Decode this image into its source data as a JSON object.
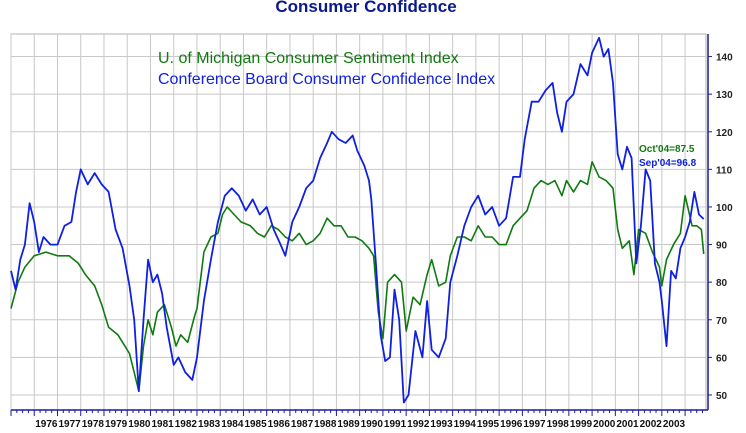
{
  "chart_data": {
    "type": "line",
    "title": "Consumer Confidence",
    "xlabel": "",
    "ylabel": "",
    "ylim": [
      46,
      146
    ],
    "yticks": [
      50,
      60,
      70,
      80,
      90,
      100,
      110,
      120,
      130,
      140
    ],
    "x_years": [
      "1976",
      "1977",
      "1978",
      "1979",
      "1980",
      "1981",
      "1982",
      "1983",
      "1984",
      "1985",
      "1986",
      "1987",
      "1988",
      "1989",
      "1990",
      "1991",
      "1992",
      "1993",
      "1994",
      "1995",
      "1996",
      "1997",
      "1998",
      "1999",
      "2000",
      "2001",
      "2002",
      "2003"
    ],
    "xlim": [
      1975.0,
      2004.9
    ],
    "grid": true,
    "legend": "top-left",
    "colors": {
      "sentiment": "#107a10",
      "confidence": "#1020e0",
      "axis": "#1a1aa0",
      "grid": "#c8c8c8"
    },
    "series": [
      {
        "name": "U. of Michigan Consumer Sentiment Index",
        "key": "sentiment",
        "points": [
          [
            1975.0,
            73
          ],
          [
            1975.3,
            80
          ],
          [
            1975.6,
            84
          ],
          [
            1976.0,
            87
          ],
          [
            1976.5,
            88
          ],
          [
            1977.0,
            87
          ],
          [
            1977.5,
            87
          ],
          [
            1977.9,
            85
          ],
          [
            1978.2,
            82
          ],
          [
            1978.6,
            79
          ],
          [
            1978.9,
            74
          ],
          [
            1979.2,
            68
          ],
          [
            1979.6,
            66
          ],
          [
            1979.9,
            63
          ],
          [
            1980.1,
            61
          ],
          [
            1980.3,
            56
          ],
          [
            1980.5,
            51
          ],
          [
            1980.7,
            63
          ],
          [
            1980.9,
            70
          ],
          [
            1981.1,
            66
          ],
          [
            1981.3,
            72
          ],
          [
            1981.6,
            74
          ],
          [
            1981.9,
            68
          ],
          [
            1982.1,
            63
          ],
          [
            1982.3,
            66
          ],
          [
            1982.6,
            64
          ],
          [
            1982.9,
            71
          ],
          [
            1983.0,
            73
          ],
          [
            1983.3,
            88
          ],
          [
            1983.6,
            92
          ],
          [
            1983.9,
            93
          ],
          [
            1984.1,
            98
          ],
          [
            1984.3,
            100
          ],
          [
            1984.6,
            98
          ],
          [
            1984.9,
            96
          ],
          [
            1985.3,
            95
          ],
          [
            1985.6,
            93
          ],
          [
            1985.9,
            92
          ],
          [
            1986.2,
            95
          ],
          [
            1986.5,
            94
          ],
          [
            1986.8,
            92
          ],
          [
            1987.1,
            91
          ],
          [
            1987.4,
            93
          ],
          [
            1987.7,
            90
          ],
          [
            1988.0,
            91
          ],
          [
            1988.3,
            93
          ],
          [
            1988.6,
            97
          ],
          [
            1988.9,
            95
          ],
          [
            1989.2,
            95
          ],
          [
            1989.5,
            92
          ],
          [
            1989.8,
            92
          ],
          [
            1990.1,
            91
          ],
          [
            1990.4,
            89
          ],
          [
            1990.6,
            87
          ],
          [
            1990.8,
            72
          ],
          [
            1991.0,
            65
          ],
          [
            1991.2,
            80
          ],
          [
            1991.5,
            82
          ],
          [
            1991.8,
            80
          ],
          [
            1992.0,
            67
          ],
          [
            1992.3,
            76
          ],
          [
            1992.6,
            74
          ],
          [
            1992.9,
            82
          ],
          [
            1993.1,
            86
          ],
          [
            1993.4,
            79
          ],
          [
            1993.7,
            80
          ],
          [
            1993.9,
            87
          ],
          [
            1994.2,
            92
          ],
          [
            1994.5,
            92
          ],
          [
            1994.8,
            91
          ],
          [
            1995.1,
            95
          ],
          [
            1995.4,
            92
          ],
          [
            1995.7,
            92
          ],
          [
            1996.0,
            90
          ],
          [
            1996.3,
            90
          ],
          [
            1996.6,
            95
          ],
          [
            1996.9,
            97
          ],
          [
            1997.2,
            99
          ],
          [
            1997.5,
            105
          ],
          [
            1997.8,
            107
          ],
          [
            1998.1,
            106
          ],
          [
            1998.4,
            107
          ],
          [
            1998.7,
            103
          ],
          [
            1998.9,
            107
          ],
          [
            1999.2,
            104
          ],
          [
            1999.5,
            107
          ],
          [
            1999.8,
            106
          ],
          [
            2000.0,
            112
          ],
          [
            2000.3,
            108
          ],
          [
            2000.6,
            107
          ],
          [
            2000.9,
            105
          ],
          [
            2001.1,
            94
          ],
          [
            2001.3,
            89
          ],
          [
            2001.6,
            91
          ],
          [
            2001.8,
            82
          ],
          [
            2002.0,
            94
          ],
          [
            2002.3,
            93
          ],
          [
            2002.6,
            88
          ],
          [
            2002.9,
            84
          ],
          [
            2003.0,
            79
          ],
          [
            2003.2,
            86
          ],
          [
            2003.5,
            90
          ],
          [
            2003.8,
            93
          ],
          [
            2004.0,
            103
          ],
          [
            2004.3,
            95
          ],
          [
            2004.5,
            95
          ],
          [
            2004.7,
            94
          ],
          [
            2004.8,
            87.5
          ]
        ]
      },
      {
        "name": "Conference Board Consumer Confidence Index",
        "key": "confidence",
        "points": [
          [
            1975.0,
            83
          ],
          [
            1975.2,
            78
          ],
          [
            1975.4,
            86
          ],
          [
            1975.6,
            90
          ],
          [
            1975.8,
            101
          ],
          [
            1976.0,
            96
          ],
          [
            1976.2,
            88
          ],
          [
            1976.4,
            92
          ],
          [
            1976.7,
            90
          ],
          [
            1977.0,
            90
          ],
          [
            1977.3,
            95
          ],
          [
            1977.6,
            96
          ],
          [
            1977.8,
            104
          ],
          [
            1978.0,
            110
          ],
          [
            1978.3,
            106
          ],
          [
            1978.6,
            109
          ],
          [
            1978.9,
            106
          ],
          [
            1979.2,
            104
          ],
          [
            1979.5,
            94
          ],
          [
            1979.8,
            89
          ],
          [
            1980.1,
            79
          ],
          [
            1980.3,
            70
          ],
          [
            1980.5,
            51
          ],
          [
            1980.7,
            70
          ],
          [
            1980.9,
            86
          ],
          [
            1981.1,
            80
          ],
          [
            1981.3,
            82
          ],
          [
            1981.5,
            77
          ],
          [
            1981.7,
            68
          ],
          [
            1982.0,
            58
          ],
          [
            1982.2,
            60
          ],
          [
            1982.5,
            56
          ],
          [
            1982.8,
            54
          ],
          [
            1983.0,
            60
          ],
          [
            1983.3,
            75
          ],
          [
            1983.6,
            86
          ],
          [
            1983.9,
            96
          ],
          [
            1984.2,
            103
          ],
          [
            1984.5,
            105
          ],
          [
            1984.8,
            103
          ],
          [
            1985.1,
            99
          ],
          [
            1985.4,
            102
          ],
          [
            1985.7,
            98
          ],
          [
            1986.0,
            100
          ],
          [
            1986.3,
            94
          ],
          [
            1986.6,
            90
          ],
          [
            1986.8,
            87
          ],
          [
            1987.1,
            96
          ],
          [
            1987.4,
            100
          ],
          [
            1987.7,
            105
          ],
          [
            1988.0,
            107
          ],
          [
            1988.3,
            113
          ],
          [
            1988.6,
            117
          ],
          [
            1988.8,
            120
          ],
          [
            1989.1,
            118
          ],
          [
            1989.4,
            117
          ],
          [
            1989.7,
            119
          ],
          [
            1989.9,
            115
          ],
          [
            1990.2,
            111
          ],
          [
            1990.4,
            107
          ],
          [
            1990.5,
            102
          ],
          [
            1990.7,
            85
          ],
          [
            1990.9,
            66
          ],
          [
            1991.1,
            59
          ],
          [
            1991.3,
            60
          ],
          [
            1991.5,
            78
          ],
          [
            1991.7,
            70
          ],
          [
            1991.9,
            48
          ],
          [
            1992.1,
            50
          ],
          [
            1992.4,
            67
          ],
          [
            1992.7,
            60
          ],
          [
            1992.9,
            75
          ],
          [
            1993.1,
            62
          ],
          [
            1993.4,
            60
          ],
          [
            1993.7,
            65
          ],
          [
            1993.9,
            80
          ],
          [
            1994.2,
            87
          ],
          [
            1994.5,
            95
          ],
          [
            1994.8,
            100
          ],
          [
            1995.1,
            103
          ],
          [
            1995.4,
            98
          ],
          [
            1995.7,
            100
          ],
          [
            1996.0,
            95
          ],
          [
            1996.3,
            97
          ],
          [
            1996.6,
            108
          ],
          [
            1996.9,
            108
          ],
          [
            1997.1,
            118
          ],
          [
            1997.4,
            128
          ],
          [
            1997.7,
            128
          ],
          [
            1998.0,
            131
          ],
          [
            1998.3,
            133
          ],
          [
            1998.5,
            125
          ],
          [
            1998.7,
            120
          ],
          [
            1998.9,
            128
          ],
          [
            1999.2,
            130
          ],
          [
            1999.5,
            138
          ],
          [
            1999.8,
            135
          ],
          [
            2000.0,
            141
          ],
          [
            2000.3,
            145
          ],
          [
            2000.5,
            140
          ],
          [
            2000.7,
            142
          ],
          [
            2000.9,
            133
          ],
          [
            2001.1,
            114
          ],
          [
            2001.3,
            110
          ],
          [
            2001.5,
            116
          ],
          [
            2001.7,
            113
          ],
          [
            2001.9,
            85
          ],
          [
            2002.1,
            95
          ],
          [
            2002.3,
            110
          ],
          [
            2002.5,
            107
          ],
          [
            2002.7,
            85
          ],
          [
            2002.9,
            80
          ],
          [
            2003.0,
            75
          ],
          [
            2003.2,
            63
          ],
          [
            2003.4,
            83
          ],
          [
            2003.6,
            81
          ],
          [
            2003.8,
            89
          ],
          [
            2004.0,
            92
          ],
          [
            2004.2,
            96
          ],
          [
            2004.4,
            104
          ],
          [
            2004.6,
            98
          ],
          [
            2004.8,
            96.8
          ]
        ]
      }
    ],
    "annotations": [
      {
        "text": "Oct'04=87.5",
        "series": "sentiment"
      },
      {
        "text": "Sep'04=96.8",
        "series": "confidence"
      }
    ]
  }
}
